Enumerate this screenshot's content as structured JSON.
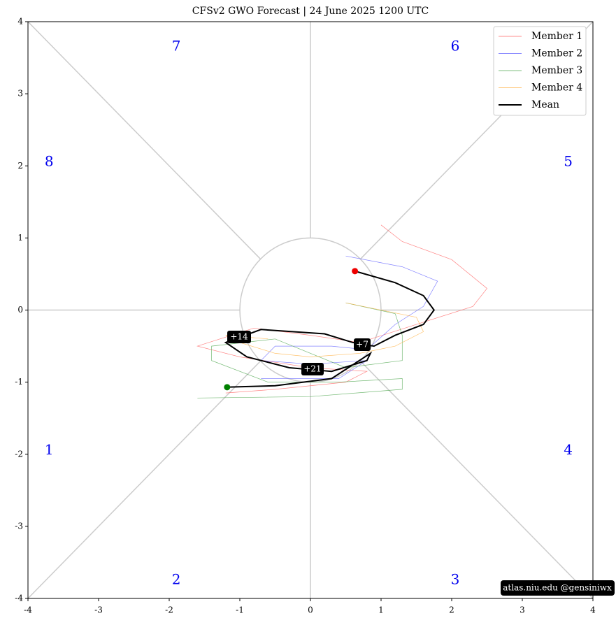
{
  "chart_data": {
    "type": "line",
    "title": "CFSv2 GWO Forecast   |   24  June  2025 1200 UTC",
    "xlim": [
      -4,
      4
    ],
    "ylim": [
      -4,
      4
    ],
    "xticks": [
      -4,
      -3,
      -2,
      -1,
      0,
      1,
      2,
      3,
      4
    ],
    "yticks": [
      -4,
      -3,
      -2,
      -1,
      0,
      1,
      2,
      3,
      4
    ],
    "phase_labels": [
      "1",
      "2",
      "3",
      "4",
      "5",
      "6",
      "7",
      "8"
    ],
    "annotations": [
      "+7",
      "+14",
      "+21"
    ],
    "watermark": "atlas.niu.edu  @gensiniwx",
    "series": [
      {
        "name": "Member 1",
        "color": "#ff6666",
        "x": [
          1.0,
          1.3,
          2.0,
          2.5,
          2.3,
          1.5,
          0.7,
          0.0,
          -0.8,
          -1.6,
          -1.0,
          0.0,
          0.8,
          0.5,
          -0.5,
          -1.2
        ],
        "y": [
          1.18,
          0.95,
          0.7,
          0.3,
          0.05,
          -0.2,
          -0.45,
          -0.35,
          -0.25,
          -0.5,
          -0.65,
          -0.8,
          -0.85,
          -1.0,
          -1.1,
          -1.15
        ]
      },
      {
        "name": "Member 2",
        "color": "#6666ff",
        "x": [
          0.5,
          1.3,
          1.8,
          1.6,
          1.2,
          0.8,
          0.3,
          -0.5,
          -0.7,
          0.0,
          0.8,
          0.4,
          -0.7
        ],
        "y": [
          0.75,
          0.6,
          0.4,
          0.05,
          -0.2,
          -0.55,
          -0.5,
          -0.5,
          -0.7,
          -0.75,
          -0.7,
          -0.95,
          -0.95
        ]
      },
      {
        "name": "Member 3",
        "color": "#55aa55",
        "x": [
          0.5,
          1.2,
          1.3,
          1.3,
          0.5,
          -0.5,
          -1.4,
          -1.4,
          -0.6,
          0.4,
          1.3,
          1.3,
          0.0,
          -1.6
        ],
        "y": [
          0.1,
          -0.05,
          -0.35,
          -0.7,
          -0.8,
          -0.4,
          -0.5,
          -0.7,
          -1.0,
          -1.0,
          -0.95,
          -1.1,
          -1.2,
          -1.22
        ]
      },
      {
        "name": "Member 4",
        "color": "#ffb347",
        "x": [
          0.5,
          1.5,
          1.6,
          1.2,
          0.7,
          0.0,
          -0.5,
          -1.0,
          -1.2,
          -0.6
        ],
        "y": [
          0.1,
          -0.1,
          -0.3,
          -0.5,
          -0.6,
          -0.65,
          -0.6,
          -0.45,
          -0.35,
          -0.4
        ]
      },
      {
        "name": "Mean",
        "color": "#000000",
        "x": [
          0.63,
          1.2,
          1.6,
          1.75,
          1.6,
          1.2,
          0.9,
          0.6,
          0.2,
          -0.7,
          -1.2,
          -0.9,
          -0.3,
          0.3,
          0.8,
          0.85,
          0.3,
          -0.5,
          -1.18
        ],
        "y": [
          0.54,
          0.38,
          0.2,
          0.0,
          -0.2,
          -0.35,
          -0.5,
          -0.45,
          -0.33,
          -0.27,
          -0.45,
          -0.65,
          -0.8,
          -0.85,
          -0.7,
          -0.6,
          -0.95,
          -1.05,
          -1.07
        ]
      }
    ]
  }
}
